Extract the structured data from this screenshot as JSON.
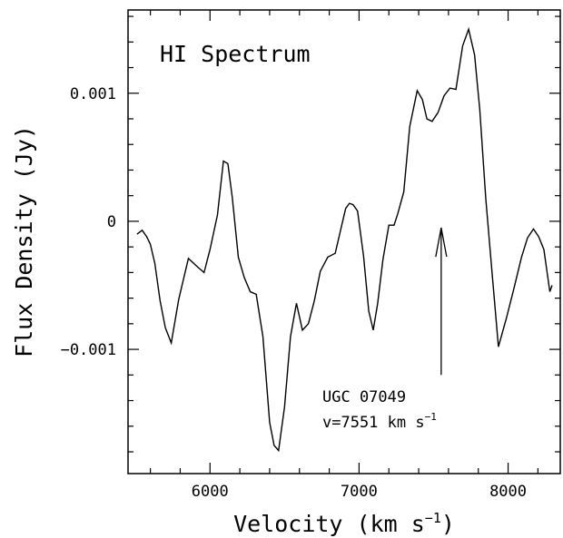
{
  "chart_data": {
    "type": "line",
    "title": "HI Spectrum",
    "xlabel": "Velocity (km s",
    "xlabel_sup": "−1",
    "xlabel_close": ")",
    "ylabel": "Flux Density (Jy)",
    "xlim": [
      5450,
      8350
    ],
    "ylim": [
      -0.00197,
      0.00165
    ],
    "x_ticks": [
      6000,
      7000,
      8000
    ],
    "x_tick_labels": [
      "6000",
      "7000",
      "8000"
    ],
    "y_ticks": [
      0.001,
      0,
      -0.001
    ],
    "y_tick_labels": [
      "0.001",
      "0",
      "−0.001"
    ],
    "grid": false,
    "series": [
      {
        "x": [
          5510,
          5545,
          5575,
          5600,
          5630,
          5665,
          5700,
          5740,
          5790,
          5855,
          5920,
          5960,
          6000,
          6050,
          6090,
          6120,
          6150,
          6190,
          6230,
          6270,
          6310,
          6355,
          6400,
          6430,
          6460,
          6500,
          6540,
          6580,
          6620,
          6660,
          6700,
          6740,
          6790,
          6840,
          6880,
          6910,
          6935,
          6960,
          6990,
          7030,
          7065,
          7095,
          7125,
          7160,
          7200,
          7235,
          7260,
          7300,
          7340,
          7390,
          7425,
          7455,
          7490,
          7530,
          7570,
          7610,
          7650,
          7695,
          7735,
          7775,
          7810,
          7850,
          7890,
          7935,
          7990,
          8040,
          8090,
          8130,
          8170,
          8205,
          8240,
          8280,
          8295
        ],
        "y": [
          -0.0001,
          -7e-05,
          -0.00012,
          -0.00018,
          -0.00033,
          -0.00062,
          -0.00083,
          -0.00095,
          -0.00061,
          -0.00029,
          -0.00036,
          -0.0004,
          -0.00022,
          5e-05,
          0.00047,
          0.00045,
          0.00018,
          -0.00028,
          -0.00044,
          -0.00055,
          -0.00057,
          -0.0009,
          -0.00157,
          -0.00175,
          -0.00179,
          -0.00145,
          -0.0009,
          -0.00064,
          -0.00085,
          -0.0008,
          -0.00062,
          -0.00039,
          -0.00028,
          -0.00025,
          -5e-05,
          0.0001,
          0.00014,
          0.00013,
          8e-05,
          -0.00027,
          -0.0007,
          -0.00085,
          -0.00064,
          -0.0003,
          -3e-05,
          -3e-05,
          6e-05,
          0.00023,
          0.00074,
          0.00102,
          0.00095,
          0.0008,
          0.00078,
          0.00085,
          0.00098,
          0.00104,
          0.00103,
          0.00137,
          0.0015,
          0.0013,
          0.00087,
          0.00018,
          -0.00037,
          -0.00098,
          -0.00075,
          -0.00052,
          -0.00028,
          -0.00013,
          -6e-05,
          -0.00012,
          -0.00022,
          -0.00055,
          -0.0005
        ]
      }
    ],
    "annotations": {
      "galaxy_name": "UGC 07049",
      "velocity_text": "v=7551 km s",
      "velocity_sup": "−1",
      "arrow_x": 7551,
      "arrow_y_tip": -5e-05,
      "arrow_y_tail": -0.0012
    }
  }
}
